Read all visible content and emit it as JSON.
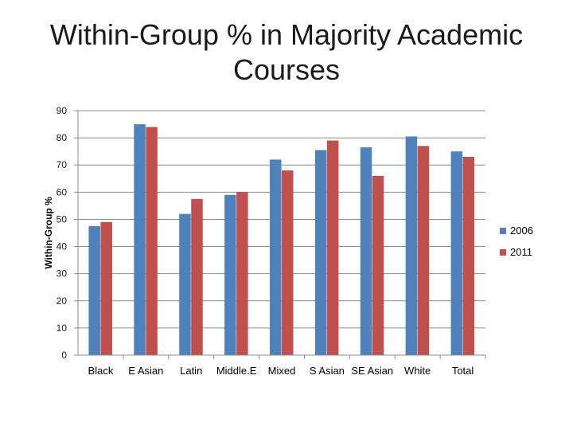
{
  "chart_data": {
    "type": "bar",
    "title": "Within-Group % in Majority Academic Courses",
    "xlabel": "",
    "ylabel": "Within-Group %",
    "ylim": [
      0,
      90
    ],
    "yticks": [
      "0",
      "10",
      "20",
      "30",
      "40",
      "50",
      "60",
      "70",
      "80",
      "90"
    ],
    "grid": true,
    "legend_position": "right",
    "categories": [
      "Black",
      "E Asian",
      "Latin",
      "Middle.E",
      "Mixed",
      "S Asian",
      "SE Asian",
      "White",
      "Total"
    ],
    "series": [
      {
        "name": "2006",
        "color": "#4f81bd",
        "values": [
          47.5,
          85,
          52,
          59,
          72,
          75.5,
          76.5,
          80.5,
          75
        ]
      },
      {
        "name": "2011",
        "color": "#c0504d",
        "values": [
          49,
          84,
          57.5,
          60,
          68,
          79,
          66,
          77,
          73
        ]
      }
    ]
  }
}
